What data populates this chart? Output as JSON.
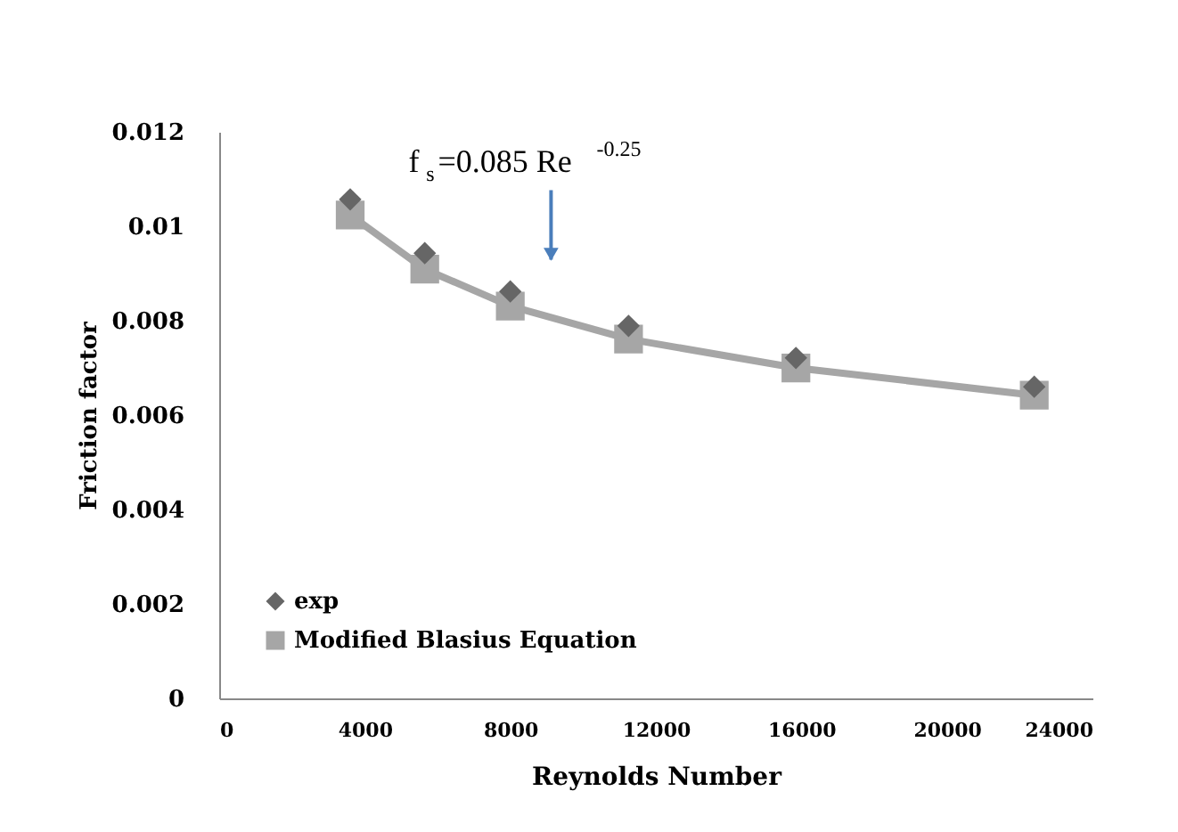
{
  "chart_data": {
    "type": "line",
    "xlabel": "Reynolds Number",
    "ylabel": "Friction factor",
    "x": [
      3600,
      5650,
      8000,
      11250,
      15850,
      22400
    ],
    "series": [
      {
        "name": "exp",
        "type": "scatter",
        "marker": "diamond",
        "color": "#666666",
        "values": [
          0.01057,
          0.00943,
          0.00862,
          0.00789,
          0.00721,
          0.0066
        ]
      },
      {
        "name": "Modified Blasius Equation",
        "marker": "square",
        "color": "#a6a6a6",
        "values": [
          0.01024,
          0.00909,
          0.00831,
          0.00761,
          0.007,
          0.00642
        ]
      }
    ],
    "xlim": [
      0,
      24000
    ],
    "xticks": [
      0,
      4000,
      8000,
      12000,
      16000,
      20000,
      24000
    ],
    "ylim": [
      0,
      0.012
    ],
    "yticks": [
      0,
      0.002,
      0.004,
      0.006,
      0.008,
      0.01,
      0.012
    ],
    "grid": false,
    "legend": "bottom left",
    "annotations": [
      "f$_{s}$=0.085 Re$^{-0.25}$"
    ]
  }
}
